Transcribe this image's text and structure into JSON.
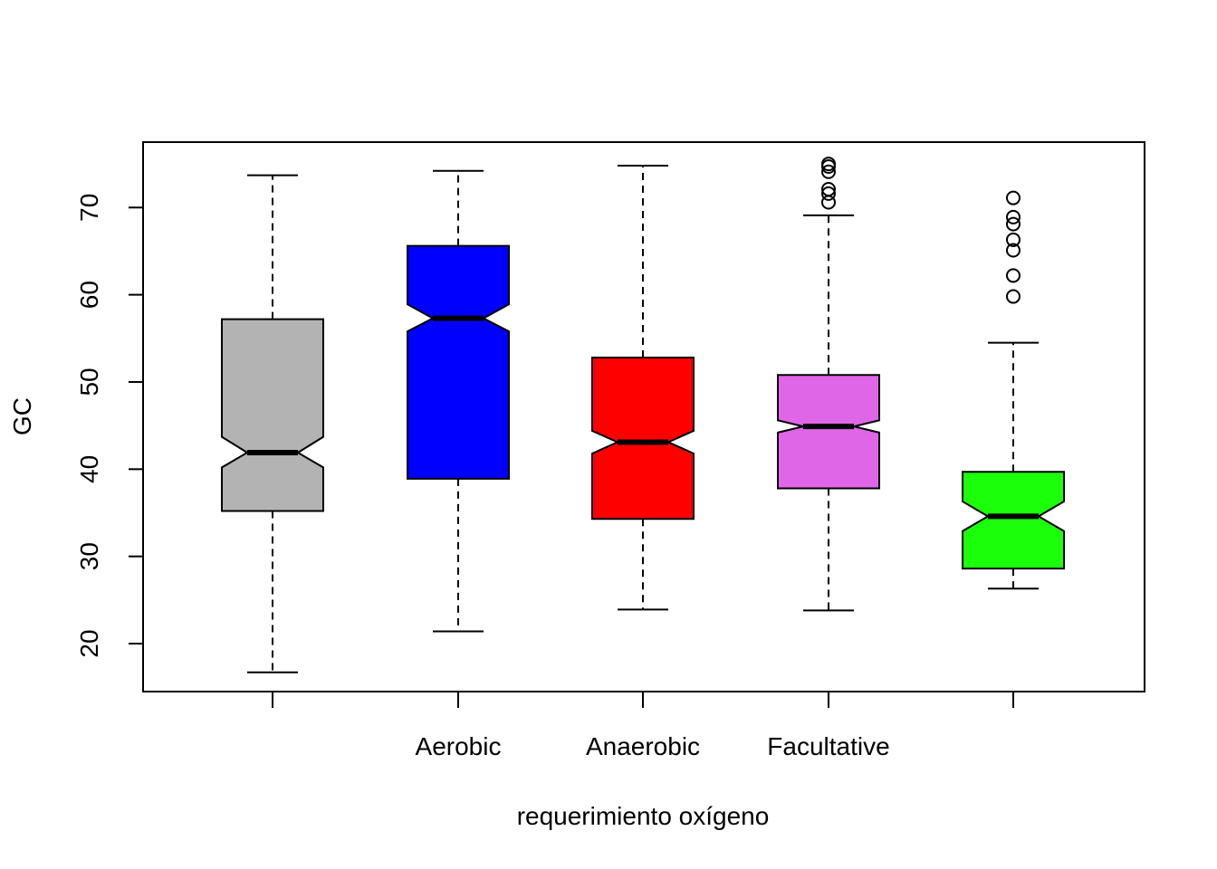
{
  "chart_data": {
    "type": "boxplot",
    "title": "",
    "xlabel": "requerimiento oxígeno",
    "ylabel": "GC",
    "ylim": [
      14.5,
      77.5
    ],
    "yticks": [
      20,
      30,
      40,
      50,
      60,
      70
    ],
    "notched": true,
    "grid": false,
    "legend": "none",
    "categories": [
      {
        "label": "",
        "color": "#b3b3b3",
        "whisker_low": 16.7,
        "q1": 35.2,
        "median": 41.9,
        "q3": 57.2,
        "whisker_high": 73.7,
        "notch_low": 40.2,
        "notch_high": 43.7,
        "outliers": []
      },
      {
        "label": "Aerobic",
        "color": "#0000ff",
        "whisker_low": 21.4,
        "q1": 38.9,
        "median": 57.3,
        "q3": 65.6,
        "whisker_high": 74.2,
        "notch_low": 55.8,
        "notch_high": 58.9,
        "outliers": []
      },
      {
        "label": "Anaerobic",
        "color": "#ff0000",
        "whisker_low": 23.9,
        "q1": 34.3,
        "median": 43.1,
        "q3": 52.8,
        "whisker_high": 74.8,
        "notch_low": 41.8,
        "notch_high": 44.4,
        "outliers": []
      },
      {
        "label": "Facultative",
        "color": "#e066e8",
        "whisker_low": 23.8,
        "q1": 37.8,
        "median": 44.9,
        "q3": 50.8,
        "whisker_high": 69.1,
        "notch_low": 44.2,
        "notch_high": 45.6,
        "outliers": [
          70.6,
          71.6,
          72.1,
          74.1,
          74.7,
          75.0
        ]
      },
      {
        "label": "",
        "color": "#1cff0a",
        "whisker_low": 26.3,
        "q1": 28.6,
        "median": 34.6,
        "q3": 39.7,
        "whisker_high": 54.5,
        "notch_low": 32.9,
        "notch_high": 36.3,
        "outliers": [
          59.8,
          62.2,
          65.1,
          66.3,
          68.1,
          68.9,
          71.1
        ]
      }
    ]
  }
}
